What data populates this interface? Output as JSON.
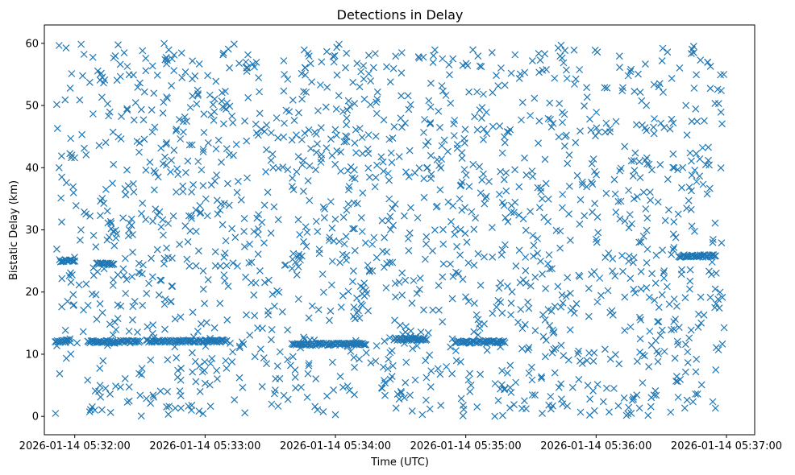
{
  "chart_data": {
    "type": "scatter",
    "title": "Detections in Delay",
    "xlabel": "Time (UTC)",
    "ylabel": "Bistatic Delay (km)",
    "marker": "x",
    "color": "#1f77b4",
    "grid": false,
    "xlim": [
      "2026-01-14 05:31:46",
      "2026-01-14 05:37:13"
    ],
    "ylim": [
      -2.95,
      62.95
    ],
    "x_ticks": [
      "2026-01-14 05:32:00",
      "2026-01-14 05:33:00",
      "2026-01-14 05:34:00",
      "2026-01-14 05:35:00",
      "2026-01-14 05:36:00",
      "2026-01-14 05:37:00"
    ],
    "y_ticks": [
      0,
      10,
      20,
      30,
      40,
      50,
      60
    ],
    "time_range": [
      "2026-01-14 05:31:51",
      "2026-01-14 05:36:59"
    ],
    "delay_range_km": [
      0,
      60
    ],
    "tracks": [
      {
        "start": "2026-01-14 05:31:51",
        "end": "2026-01-14 05:31:58",
        "delay_km": 12.1
      },
      {
        "start": "2026-01-14 05:32:06",
        "end": "2026-01-14 05:32:30",
        "delay_km": 12.0
      },
      {
        "start": "2026-01-14 05:32:33",
        "end": "2026-01-14 05:33:10",
        "delay_km": 12.1
      },
      {
        "start": "2026-01-14 05:33:40",
        "end": "2026-01-14 05:34:14",
        "delay_km": 11.6
      },
      {
        "start": "2026-01-14 05:34:27",
        "end": "2026-01-14 05:34:42",
        "delay_km": 12.4
      },
      {
        "start": "2026-01-14 05:34:55",
        "end": "2026-01-14 05:35:18",
        "delay_km": 12.0
      },
      {
        "start": "2026-01-14 05:31:53",
        "end": "2026-01-14 05:32:00",
        "delay_km": 25.0
      },
      {
        "start": "2026-01-14 05:32:10",
        "end": "2026-01-14 05:32:18",
        "delay_km": 24.5
      },
      {
        "start": "2026-01-14 05:36:38",
        "end": "2026-01-14 05:36:55",
        "delay_km": 25.8
      }
    ]
  }
}
